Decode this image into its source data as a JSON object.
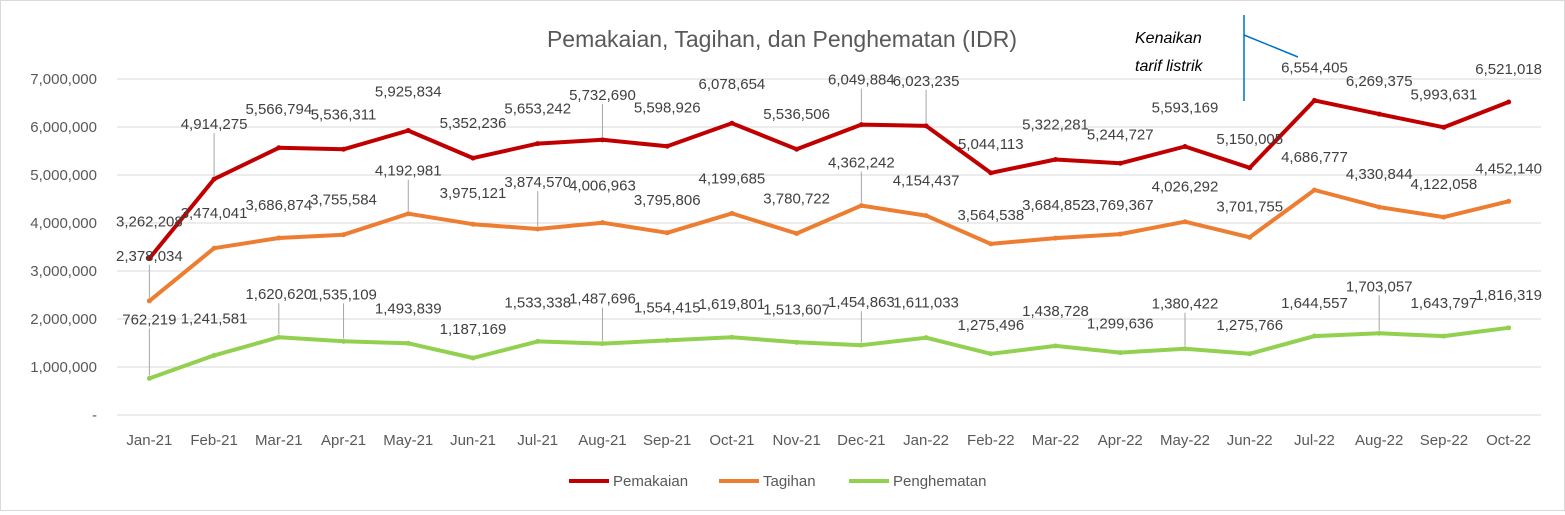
{
  "chart_data": {
    "type": "line",
    "title": "Pemakaian, Tagihan, dan Penghematan (IDR)",
    "xlabel": "",
    "ylabel": "",
    "categories": [
      "Jan-21",
      "Feb-21",
      "Mar-21",
      "Apr-21",
      "May-21",
      "Jun-21",
      "Jul-21",
      "Aug-21",
      "Sep-21",
      "Oct-21",
      "Nov-21",
      "Dec-21",
      "Jan-22",
      "Feb-22",
      "Mar-22",
      "Apr-22",
      "May-22",
      "Jun-22",
      "Jul-22",
      "Aug-22",
      "Sep-22",
      "Oct-22"
    ],
    "y_ticks": [
      0,
      1000000,
      2000000,
      3000000,
      4000000,
      5000000,
      6000000,
      7000000
    ],
    "y_tick_labels": [
      "-",
      "1,000,000",
      "2,000,000",
      "3,000,000",
      "4,000,000",
      "5,000,000",
      "6,000,000",
      "7,000,000"
    ],
    "ylim": [
      0,
      7000000
    ],
    "grid": true,
    "legend_position": "bottom",
    "series": [
      {
        "name": "Pemakaian",
        "color": "#c00000",
        "values": [
          3262208,
          4914275,
          5566794,
          5536311,
          5925834,
          5352236,
          5653242,
          5732690,
          5598926,
          6078654,
          5536506,
          6049884,
          6023235,
          5044113,
          5322281,
          5244727,
          5593169,
          5150005,
          6554405,
          6269375,
          5993631,
          6521018
        ],
        "labels": [
          "3,262,208",
          "4,914,275",
          "5,566,794",
          "5,536,311",
          "5,925,834",
          "5,352,236",
          "5,653,242",
          "5,732,690",
          "5,598,926",
          "6,078,654",
          "5,536,506",
          "6,049,884",
          "6,023,235",
          "5,044,113",
          "5,322,281",
          "5,244,727",
          "5,593,169",
          "5,150,005",
          "6,554,405",
          "6,269,375",
          "5,993,631",
          "6,521,018"
        ]
      },
      {
        "name": "Tagihan",
        "color": "#ed7d31",
        "values": [
          2378034,
          3474041,
          3686874,
          3755584,
          4192981,
          3975121,
          3874570,
          4006963,
          3795806,
          4199685,
          3780722,
          4362242,
          4154437,
          3564538,
          3684852,
          3769367,
          4026292,
          3701755,
          4686777,
          4330844,
          4122058,
          4452140
        ],
        "labels": [
          "2,378,034",
          "3,474,041",
          "3,686,874",
          "3,755,584",
          "4,192,981",
          "3,975,121",
          "3,874,570",
          "4,006,963",
          "3,795,806",
          "4,199,685",
          "3,780,722",
          "4,362,242",
          "4,154,437",
          "3,564,538",
          "3,684,852",
          "3,769,367",
          "4,026,292",
          "3,701,755",
          "4,686,777",
          "4,330,844",
          "4,122,058",
          "4,452,140"
        ]
      },
      {
        "name": "Penghematan",
        "color": "#92d050",
        "values": [
          762219,
          1241581,
          1620620,
          1535109,
          1493839,
          1187169,
          1533338,
          1487696,
          1554415,
          1619801,
          1513607,
          1454863,
          1611033,
          1275496,
          1438728,
          1299636,
          1380422,
          1275766,
          1644557,
          1703057,
          1643797,
          1816319
        ],
        "labels": [
          "762,219",
          "1,241,581",
          "1,620,620",
          "1,535,109",
          "1,493,839",
          "1,187,169",
          "1,533,338",
          "1,487,696",
          "1,554,415",
          "1,619,801",
          "1,513,607",
          "1,454,863",
          "1,611,033",
          "1,275,496",
          "1,438,728",
          "1,299,636",
          "1,380,422",
          "1,275,766",
          "1,644,557",
          "1,703,057",
          "1,643,797",
          "1,816,319"
        ]
      }
    ],
    "annotation": {
      "lines": [
        "Kenaikan",
        "tarif listrik"
      ],
      "between": [
        "Jun-22",
        "Jul-22"
      ],
      "color": "#0070c0"
    }
  }
}
